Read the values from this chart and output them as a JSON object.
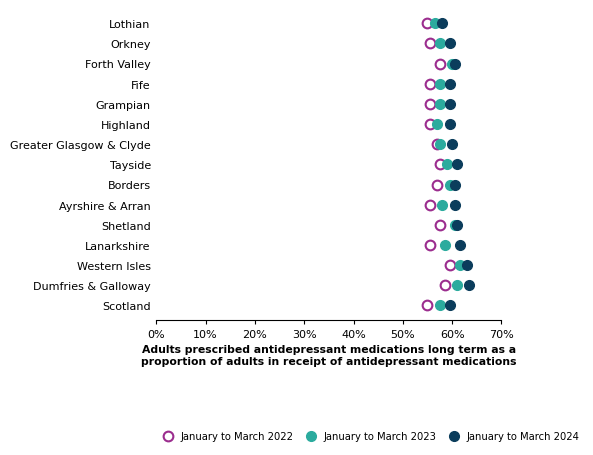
{
  "categories": [
    "Lothian",
    "Orkney",
    "Forth Valley",
    "Fife",
    "Grampian",
    "Highland",
    "Greater Glasgow & Clyde",
    "Tayside",
    "Borders",
    "Ayrshire & Arran",
    "Shetland",
    "Lanarkshire",
    "Western Isles",
    "Dumfries & Galloway",
    "Scotland"
  ],
  "jan2022": [
    55.0,
    55.5,
    57.5,
    55.5,
    55.5,
    55.5,
    57.0,
    57.5,
    57.0,
    55.5,
    57.5,
    55.5,
    59.5,
    58.5,
    55.0
  ],
  "jan2023": [
    56.5,
    57.5,
    60.0,
    57.5,
    57.5,
    57.0,
    57.5,
    59.0,
    59.5,
    58.0,
    60.5,
    58.5,
    61.5,
    61.0,
    57.5
  ],
  "jan2024": [
    58.0,
    59.5,
    60.5,
    59.5,
    59.5,
    59.5,
    60.0,
    61.0,
    60.5,
    60.5,
    61.0,
    61.5,
    63.0,
    63.5,
    59.5
  ],
  "color2022": "#9B2D8E",
  "color2023": "#2BAB9E",
  "color2024": "#0B3D5C",
  "xlabel_line1": "Adults prescribed antidepressant medications long term as a",
  "xlabel_line2": "proportion of adults in receipt of antidepressant medications",
  "xlim": [
    0,
    70
  ],
  "xtick_vals": [
    0,
    10,
    20,
    30,
    40,
    50,
    60,
    70
  ],
  "xtick_labels": [
    "0%",
    "10%",
    "20%",
    "30%",
    "40%",
    "50%",
    "60%",
    "70%"
  ],
  "legend_labels": [
    "January to March 2022",
    "January to March 2023",
    "January to March 2024"
  ],
  "marker_size": 7
}
